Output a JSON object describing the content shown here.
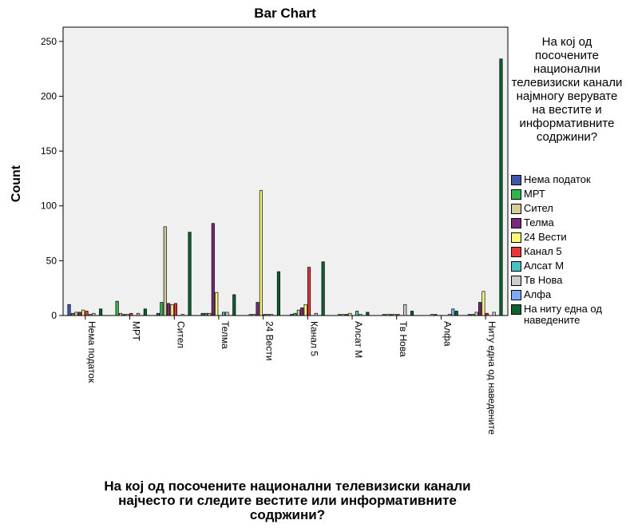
{
  "chart_data": {
    "type": "bar",
    "title": "Bar Chart",
    "x_label": "На кој од посочените национални телевизиски канали најчесто ги следите вестите или информативните содржини?",
    "y_label": "Count",
    "legend_title": "На кој од посочените национални телевизиски канали најмногу верувате на вестите и информативните содржини?",
    "categories": [
      "Нема податок",
      "МРТ",
      "Сител",
      "Телма",
      "24 Вести",
      "Канал 5",
      "Алсат М",
      "Тв Нова",
      "Алфа",
      "Ниту една од наведените"
    ],
    "series": [
      {
        "name": "Нема податок",
        "color": "#3e58ac",
        "values": [
          10,
          0,
          2,
          2,
          0,
          1,
          0,
          0,
          0,
          1
        ]
      },
      {
        "name": "МРТ",
        "color": "#2eb848",
        "values": [
          2,
          13,
          12,
          2,
          1,
          2,
          1,
          1,
          0,
          1
        ]
      },
      {
        "name": "Сител",
        "color": "#d3ce97",
        "values": [
          3,
          2,
          81,
          2,
          1,
          5,
          1,
          1,
          1,
          3
        ]
      },
      {
        "name": "Телма",
        "color": "#7c287d",
        "values": [
          3,
          1,
          11,
          84,
          12,
          7,
          1,
          1,
          1,
          12
        ]
      },
      {
        "name": "24 Вести",
        "color": "#fbf873",
        "values": [
          5,
          1,
          10,
          21,
          114,
          10,
          2,
          1,
          0,
          22
        ]
      },
      {
        "name": "Канал 5",
        "color": "#ef3338",
        "values": [
          4,
          2,
          11,
          0,
          1,
          44,
          0,
          1,
          0,
          2
        ]
      },
      {
        "name": "Алсат М",
        "color": "#48c2c5",
        "values": [
          1,
          0,
          0,
          3,
          1,
          0,
          4,
          0,
          0,
          0
        ]
      },
      {
        "name": "Тв Нова",
        "color": "#cccccc",
        "values": [
          2,
          2,
          1,
          3,
          1,
          2,
          1,
          10,
          1,
          3
        ]
      },
      {
        "name": "Алфа",
        "color": "#7baaf7",
        "values": [
          0,
          0,
          0,
          0,
          0,
          0,
          0,
          0,
          6,
          0
        ]
      },
      {
        "name": "На ниту една од наведените",
        "color": "#07652d",
        "values": [
          6,
          6,
          76,
          19,
          40,
          49,
          3,
          4,
          4,
          234
        ]
      }
    ],
    "ylim": [
      0,
      263
    ],
    "yticks": [
      0,
      50,
      100,
      150,
      200,
      250
    ]
  }
}
